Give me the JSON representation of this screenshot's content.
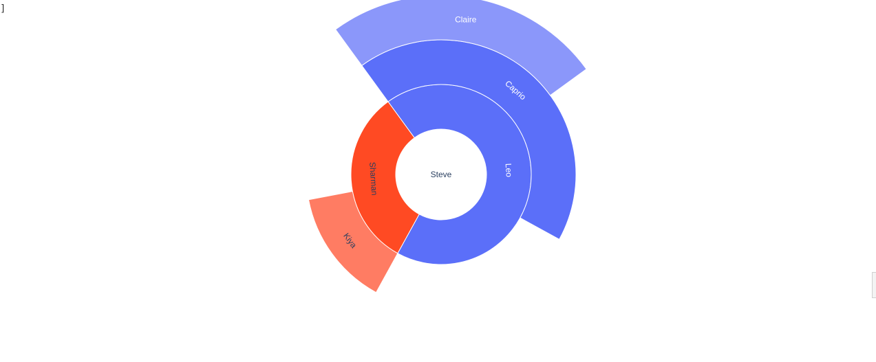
{
  "cell_prompt": {
    "text": "]"
  },
  "colors": {
    "leo_branch": "#5b6ff9",
    "claire": "#8b97fa",
    "sharman_branch": "#ff4a23",
    "kiya": "#ff7c63",
    "label_light": "#ffffff",
    "label_dark": "#2a3f5f",
    "center_label": "#2a3f5f"
  },
  "chart_data": {
    "type": "sunburst",
    "title": "",
    "root": {
      "label": "Steve",
      "value": 100
    },
    "nodes": [
      {
        "id": "leo",
        "label": "Leo",
        "parent": "Steve",
        "value": 68,
        "color_key": "leo_branch",
        "label_color_key": "label_light"
      },
      {
        "id": "sharman",
        "label": "Sharman",
        "parent": "Steve",
        "value": 32,
        "color_key": "sharman_branch",
        "label_color_key": "label_dark"
      },
      {
        "id": "caprio",
        "label": "Caprio",
        "parent": "Leo",
        "value": 43,
        "color_key": "leo_branch",
        "label_color_key": "label_light"
      },
      {
        "id": "claire",
        "label": "Claire",
        "parent": "Caprio",
        "value": 25,
        "color_key": "claire",
        "label_color_key": "label_light"
      },
      {
        "id": "kiya",
        "label": "Kiya",
        "parent": "Sharman",
        "value": 14,
        "color_key": "kiya",
        "label_color_key": "label_dark"
      }
    ]
  }
}
